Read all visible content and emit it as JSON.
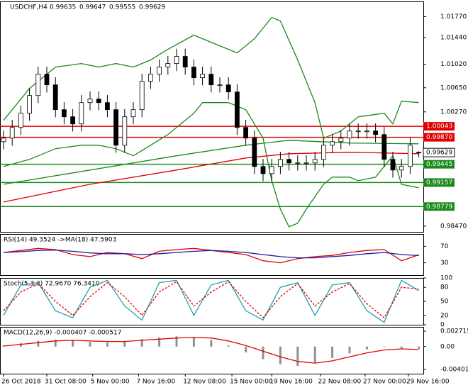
{
  "header": {
    "symbol": "USDCHF,H4",
    "values": [
      0.99635,
      0.99647,
      0.99555,
      0.99629
    ]
  },
  "chart_data": [
    {
      "type": "candlestick",
      "open": [
        0.998,
        0.99857,
        1.00025,
        1.00249,
        1.00528,
        1.00864,
        1.00696,
        1.00305,
        1.00193,
        1.00081,
        1.00416,
        1.00472,
        1.00416,
        1.00305,
        0.99745,
        1.00193,
        1.00305,
        1.00752,
        1.00864,
        1.00976,
        1.01032,
        1.01144,
        1.00976,
        1.00808,
        1.00864,
        1.00696,
        1.00696,
        1.00584,
        1.00025,
        0.99857,
        0.9941,
        0.99298,
        0.9941,
        0.99522,
        0.99466,
        0.99466,
        0.99466,
        0.99522,
        0.99745,
        0.99801,
        0.99857,
        0.99969,
        0.99969,
        0.99969,
        0.99913,
        0.99522,
        0.99354,
        0.9941,
        0.99635
      ],
      "high": [
        0.99977,
        1.00145,
        1.00369,
        1.00648,
        1.00984,
        1.00984,
        1.00816,
        1.00425,
        1.00313,
        1.00536,
        1.00592,
        1.00592,
        1.00536,
        1.00425,
        1.00313,
        1.00425,
        1.00872,
        1.00984,
        1.01096,
        1.01152,
        1.01264,
        1.01264,
        1.01096,
        1.00984,
        1.00984,
        1.00816,
        1.00816,
        1.00704,
        1.00145,
        0.99977,
        0.9953,
        0.9953,
        0.99642,
        0.99642,
        0.99586,
        0.99586,
        0.99642,
        0.99865,
        0.99921,
        0.99977,
        1.00089,
        1.00089,
        1.00089,
        1.00089,
        1.00033,
        0.99642,
        0.9953,
        0.99865,
        0.99647
      ],
      "low": [
        0.9968,
        0.99737,
        0.99905,
        1.00129,
        1.00408,
        1.00576,
        1.00185,
        1.00073,
        0.99961,
        0.99961,
        1.00296,
        1.00296,
        1.00185,
        0.99625,
        0.99625,
        1.00073,
        1.00185,
        1.00632,
        1.00744,
        1.00856,
        1.00912,
        1.00856,
        1.00688,
        1.00688,
        1.00576,
        1.00576,
        1.00464,
        0.99905,
        0.99737,
        0.9929,
        0.99178,
        0.99178,
        0.9929,
        0.99346,
        0.99346,
        0.99346,
        0.99346,
        0.99402,
        0.99625,
        0.99681,
        0.99737,
        0.99849,
        0.99849,
        0.99793,
        0.99402,
        0.99234,
        0.99234,
        0.9929,
        0.99555
      ],
      "close": [
        0.99857,
        1.00025,
        1.00249,
        1.00528,
        1.00864,
        1.00696,
        1.00305,
        1.00193,
        1.00081,
        1.00416,
        1.00472,
        1.00416,
        1.00305,
        0.99745,
        1.00193,
        1.00305,
        1.00752,
        1.00864,
        1.00976,
        1.01032,
        1.01144,
        1.00976,
        1.00808,
        1.00864,
        1.00696,
        1.00696,
        1.00584,
        1.00025,
        0.99857,
        0.9941,
        0.99298,
        0.9941,
        0.99522,
        0.99466,
        0.99466,
        0.99466,
        0.99522,
        0.99745,
        0.99801,
        0.99857,
        0.99969,
        0.99969,
        0.99969,
        0.99913,
        0.99522,
        0.99354,
        0.9941,
        0.99745,
        0.99629
      ],
      "ylim": [
        0.9838,
        1.0201
      ],
      "yticks": [
        {
          "value": 1.0177,
          "label": "1.01770"
        },
        {
          "value": 1.0144,
          "label": "1.01440"
        },
        {
          "value": 1.0102,
          "label": "1.01020"
        },
        {
          "value": 1.0065,
          "label": "1.00650"
        },
        {
          "value": 1.0027,
          "label": "1.00270"
        },
        {
          "value": 0.9847,
          "label": "0.98470"
        }
      ],
      "xticks": [
        {
          "value": 0,
          "label": "26 Oct 2018"
        },
        {
          "value": 5,
          "label": "31 Oct 08:00"
        },
        {
          "value": 10.3,
          "label": "5 Nov 00:00"
        },
        {
          "value": 15.6,
          "label": "7 Nov 16:00"
        },
        {
          "value": 21,
          "label": "12 Nov 08:00"
        },
        {
          "value": 26.4,
          "label": "15 Nov 00:00"
        },
        {
          "value": 31,
          "label": "19 Nov 16:00"
        },
        {
          "value": 36.6,
          "label": "22 Nov 08:00"
        },
        {
          "value": 41.8,
          "label": "27 Nov 00:00"
        },
        {
          "value": 46.8,
          "label": "29 Nov 16:00"
        }
      ],
      "overlays": [
        {
          "color": "#1a8a1a",
          "x": [
            0,
            3,
            6,
            9,
            11,
            13,
            15,
            17,
            19,
            22,
            23,
            25,
            27,
            29,
            31,
            32,
            34,
            36,
            37,
            39,
            41,
            44,
            45,
            46,
            48
          ],
          "values": [
            1.00137,
            1.0064,
            1.00976,
            1.01032,
            1.00976,
            1.01032,
            1.00976,
            1.01088,
            1.01255,
            1.01479,
            1.01423,
            1.01311,
            1.01199,
            1.01423,
            1.01759,
            1.01703,
            1.01088,
            1.00416,
            0.99857,
            0.99969,
            1.00193,
            1.00249,
            1.00081,
            1.00439,
            1.00416
          ]
        },
        {
          "color": "#1a8a1a",
          "x": [
            0,
            3,
            6,
            9,
            11,
            13,
            15,
            17,
            19,
            22,
            23,
            26,
            28,
            30,
            31,
            32,
            33,
            34,
            35,
            37,
            38,
            40,
            41,
            43,
            45,
            46,
            48
          ],
          "values": [
            0.9941,
            0.99522,
            0.9969,
            0.99745,
            0.99745,
            0.9969,
            0.99578,
            0.99745,
            0.99913,
            1.00249,
            1.00416,
            1.00416,
            1.00305,
            0.99857,
            0.99186,
            0.98738,
            0.98459,
            0.98515,
            0.98738,
            0.9913,
            0.99242,
            0.99242,
            0.99186,
            0.99242,
            0.99578,
            0.9913,
            0.99074
          ]
        },
        {
          "color": "#1a8a1a",
          "x": [
            0,
            10,
            20,
            28,
            33,
            40,
            48
          ],
          "values": [
            0.9913,
            0.99354,
            0.99578,
            0.99745,
            0.99823,
            0.99779,
            0.99767
          ]
        },
        {
          "color": "#e00000",
          "x": [
            0,
            10,
            20,
            28,
            33,
            40,
            48
          ],
          "values": [
            0.9885,
            0.9913,
            0.99354,
            0.99544,
            0.99611,
            0.99634,
            0.99611
          ]
        }
      ],
      "levels": [
        {
          "value": 1.00043,
          "color": "#e00000"
        },
        {
          "value": 0.9987,
          "label": "0.99870",
          "color": "#e00000"
        },
        {
          "value": 0.99445,
          "color": "#1a8a1a"
        },
        {
          "value": 0.99157,
          "color": "#1a8a1a"
        },
        {
          "value": 0.98779,
          "color": "#1a8a1a"
        }
      ]
    },
    {
      "type": "line",
      "title": "RSI(14) 49.3524 ->MA(18) 47.5903",
      "x": [
        0,
        2,
        4,
        6,
        8,
        10,
        12,
        14,
        16,
        18,
        20,
        22,
        24,
        26,
        28,
        30,
        32,
        34,
        36,
        38,
        40,
        42,
        44,
        46,
        48
      ],
      "series": [
        {
          "color": "#e00000",
          "values": [
            55,
            60,
            65,
            62,
            50,
            45,
            55,
            52,
            40,
            58,
            62,
            65,
            60,
            55,
            50,
            35,
            30,
            40,
            45,
            48,
            55,
            60,
            62,
            35,
            49.3524
          ]
        },
        {
          "color": "#1a1aa0",
          "values": [
            55,
            57,
            60,
            61,
            58,
            54,
            52,
            52,
            50,
            52,
            55,
            58,
            60,
            58,
            55,
            50,
            45,
            42,
            42,
            45,
            48,
            52,
            55,
            50,
            47.5903
          ]
        }
      ],
      "ylim": [
        0,
        100
      ],
      "yticks": [
        70,
        30
      ]
    },
    {
      "type": "line",
      "title": "Stoch(5,3,3) 72.9670 76.3410",
      "x": [
        0,
        2,
        4,
        6,
        8,
        10,
        12,
        14,
        16,
        18,
        20,
        22,
        24,
        26,
        28,
        30,
        32,
        34,
        36,
        38,
        40,
        42,
        44,
        46,
        48
      ],
      "series": [
        {
          "color": "#20a0b0",
          "values": [
            20,
            85,
            90,
            30,
            15,
            80,
            95,
            40,
            10,
            90,
            95,
            20,
            85,
            95,
            30,
            10,
            80,
            90,
            20,
            85,
            90,
            30,
            5,
            95,
            72.967
          ]
        },
        {
          "color": "#e00000",
          "dashed": true,
          "values": [
            30,
            70,
            88,
            50,
            20,
            60,
            90,
            60,
            20,
            70,
            92,
            40,
            70,
            92,
            50,
            15,
            60,
            88,
            40,
            70,
            88,
            45,
            15,
            80,
            76.341
          ]
        }
      ],
      "ylim": [
        0,
        100
      ],
      "yticks": [
        100,
        80,
        50,
        20,
        0
      ]
    },
    {
      "type": "macd",
      "title": "MACD(12,26,9) -0.000407 -0.000517",
      "x": [
        0,
        2,
        4,
        6,
        8,
        10,
        12,
        14,
        16,
        18,
        20,
        22,
        24,
        26,
        28,
        30,
        32,
        34,
        36,
        38,
        40,
        42,
        44,
        46,
        48
      ],
      "values": [
        0.0002,
        0.0006,
        0.001,
        0.0012,
        0.0011,
        0.0008,
        0.0007,
        0.0009,
        0.0013,
        0.0016,
        0.0018,
        0.0017,
        0.0012,
        0.0002,
        -0.001,
        -0.0022,
        -0.0031,
        -0.0034,
        -0.0028,
        -0.002,
        -0.0012,
        -0.0005,
        -0.0001,
        -0.0003,
        -0.000407
      ],
      "color": "#909090",
      "signal": {
        "color": "#e00000",
        "values": [
          0.0001,
          0.0004,
          0.0007,
          0.001,
          0.0011,
          0.001,
          0.0009,
          0.0009,
          0.0011,
          0.0013,
          0.0015,
          0.0016,
          0.0015,
          0.001,
          0.0002,
          -0.0008,
          -0.0018,
          -0.0026,
          -0.0029,
          -0.0025,
          -0.0018,
          -0.0011,
          -0.0006,
          -0.0004,
          -0.000517
        ]
      },
      "ylim": [
        -0.00476,
        0.00346
      ],
      "yticks": [
        0.002715,
        {
          "value": 0,
          "label": "0.00"
        },
        -0.004015
      ]
    }
  ]
}
